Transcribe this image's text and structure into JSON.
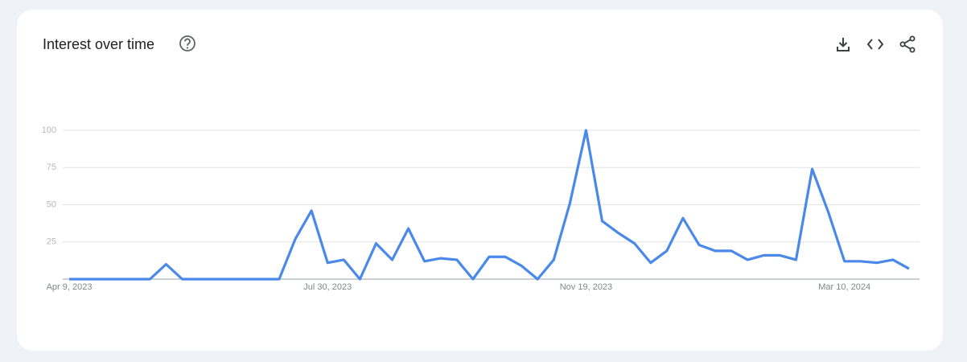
{
  "chart_data": {
    "type": "line",
    "title": "Interest over time",
    "categories": [
      "Apr 9, 2023",
      null,
      null,
      null,
      null,
      null,
      null,
      null,
      null,
      null,
      null,
      null,
      null,
      null,
      null,
      null,
      "Jul 30, 2023",
      null,
      null,
      null,
      null,
      null,
      null,
      null,
      null,
      null,
      null,
      null,
      null,
      null,
      null,
      null,
      "Nov 19, 2023",
      null,
      null,
      null,
      null,
      null,
      null,
      null,
      null,
      null,
      null,
      null,
      null,
      null,
      null,
      null,
      "Mar 10, 2024",
      null,
      null,
      null,
      null
    ],
    "series": [
      {
        "color": "#4a89ea",
        "values": [
          0,
          0,
          0,
          0,
          0,
          0,
          10,
          0,
          0,
          0,
          0,
          0,
          0,
          0,
          27,
          46,
          11,
          13,
          0,
          24,
          13,
          34,
          12,
          14,
          13,
          0,
          15,
          15,
          9,
          0,
          13,
          51,
          100,
          39,
          31,
          24,
          11,
          19,
          41,
          23,
          19,
          19,
          13,
          16,
          16,
          13,
          74,
          45,
          12,
          12,
          11,
          13,
          7
        ]
      }
    ],
    "ylim": [
      0,
      100
    ],
    "yticks": [
      25,
      50,
      75,
      100
    ],
    "grid": true
  }
}
